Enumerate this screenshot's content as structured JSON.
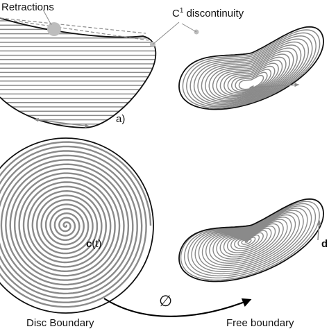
{
  "labels": {
    "retractions": "Retractions",
    "c1_prefix": "C",
    "c1_sup": "1",
    "c1_suffix": " discontinuity",
    "panel_a": "a)",
    "ct_bold": "c",
    "ct_rest": "(t)",
    "d_bold": "d",
    "phi": "∅",
    "disc_boundary": "Disc Boundary",
    "free_boundary": "Free boundary"
  },
  "colors": {
    "stroke_gray": "#8a8a8a",
    "outline": "#111111",
    "marker": "#bdbdbd",
    "arrow": "#000000"
  }
}
